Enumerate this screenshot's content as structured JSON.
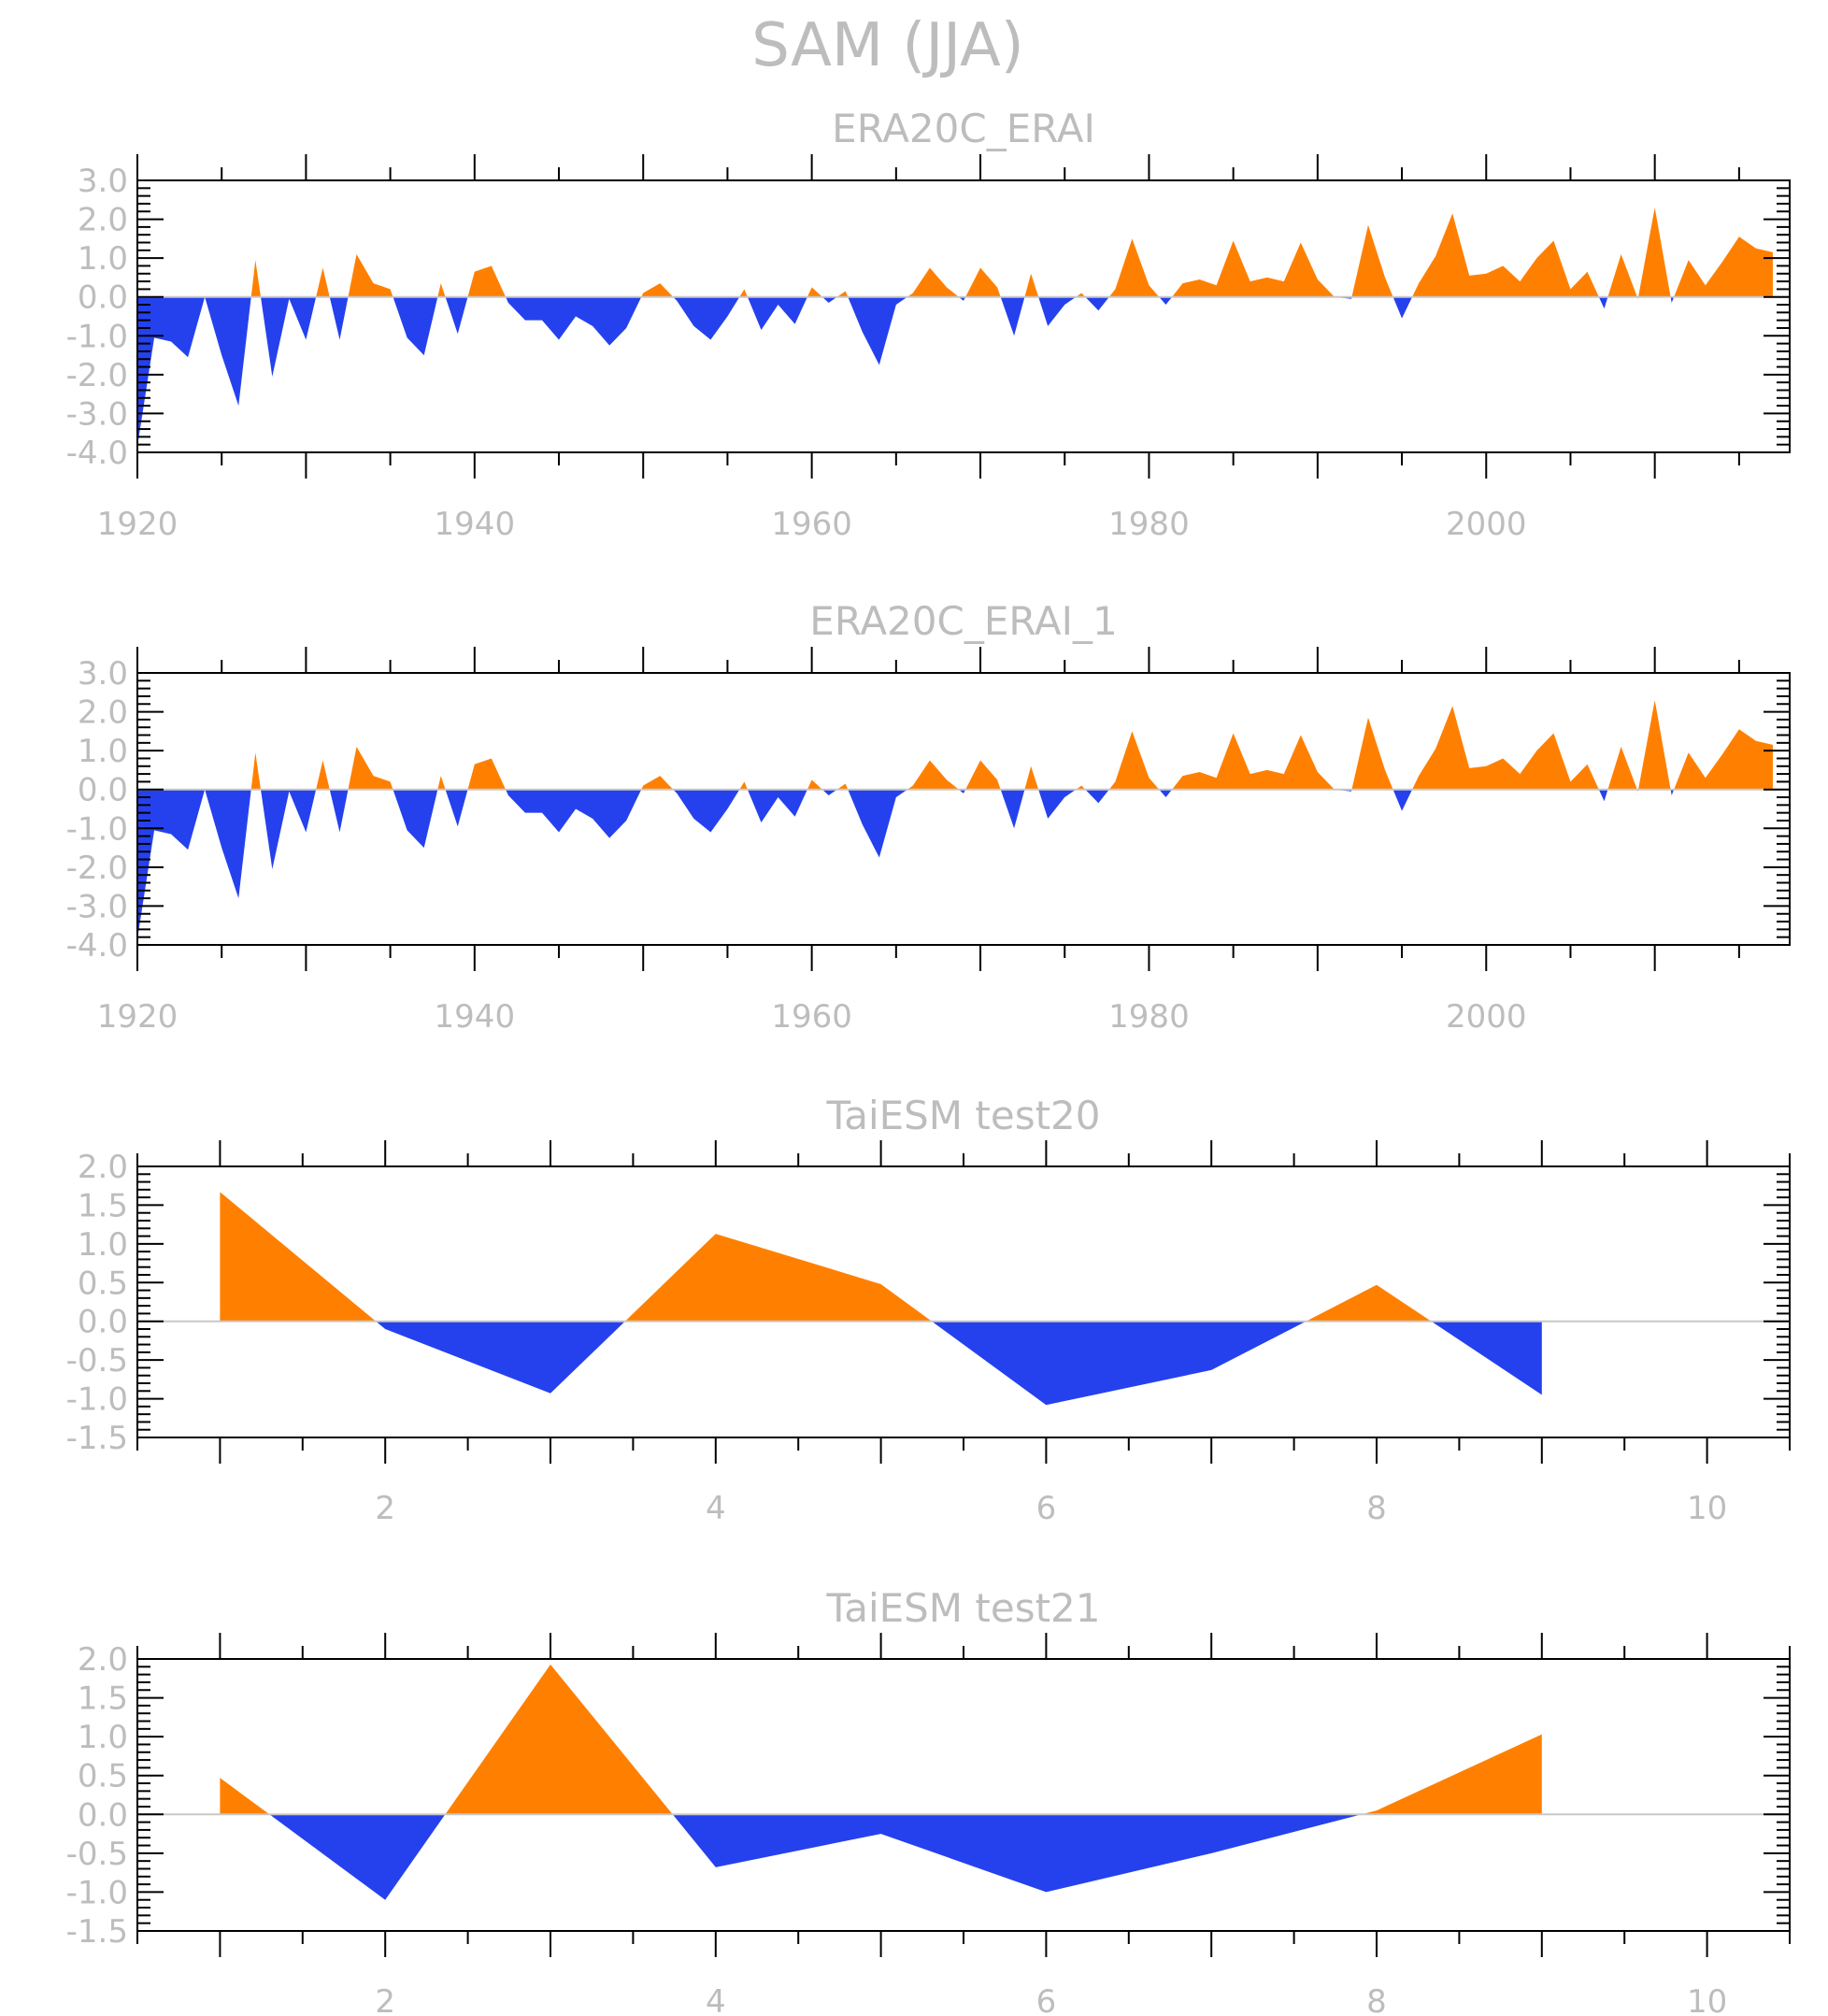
{
  "title": "SAM (JJA)",
  "colors": {
    "positive": "#ff8000",
    "negative": "#2541ee",
    "text": "#bdbdbd",
    "zero_line": "#c8c8c8"
  },
  "chart_data": [
    {
      "type": "area",
      "title": "ERA20C_ERAI",
      "x_start": 1920,
      "xlim": [
        1920,
        2018
      ],
      "ylim": [
        -4.0,
        3.0
      ],
      "yticks": [
        "3.0",
        "2.0",
        "1.0",
        "0.0",
        "-1.0",
        "-2.0",
        "-3.0",
        "-4.0"
      ],
      "xticks": [
        "1920",
        "1940",
        "1960",
        "1980",
        "2000"
      ],
      "fill_positive_color": "#ff8000",
      "fill_negative_color": "#2541ee",
      "values": [
        -3.85,
        -1.05,
        -1.15,
        -1.55,
        0.0,
        -1.5,
        -2.8,
        0.95,
        -2.05,
        -0.05,
        -1.1,
        0.75,
        -1.1,
        1.1,
        0.35,
        0.2,
        -1.05,
        -1.5,
        0.35,
        -0.95,
        0.65,
        0.8,
        -0.15,
        -0.6,
        -0.6,
        -1.1,
        -0.5,
        -0.75,
        -1.25,
        -0.8,
        0.1,
        0.35,
        -0.1,
        -0.75,
        -1.1,
        -0.5,
        0.2,
        -0.85,
        -0.2,
        -0.7,
        0.25,
        -0.15,
        0.15,
        -0.9,
        -1.75,
        -0.2,
        0.1,
        0.75,
        0.25,
        -0.1,
        0.75,
        0.25,
        -1.0,
        0.6,
        -0.75,
        -0.2,
        0.1,
        -0.35,
        0.2,
        1.5,
        0.3,
        -0.2,
        0.35,
        0.45,
        0.3,
        1.45,
        0.4,
        0.5,
        0.4,
        1.4,
        0.45,
        0.0,
        -0.05,
        1.85,
        0.5,
        -0.55,
        0.35,
        1.05,
        2.15,
        0.55,
        0.6,
        0.8,
        0.4,
        1.0,
        1.45,
        0.2,
        0.65,
        -0.3,
        1.1,
        -0.05,
        2.3,
        -0.15,
        0.95,
        0.3,
        0.9,
        1.55,
        1.25,
        1.15
      ]
    },
    {
      "type": "area",
      "title": "ERA20C_ERAI_1",
      "x_start": 1920,
      "xlim": [
        1920,
        2018
      ],
      "ylim": [
        -4.0,
        3.0
      ],
      "yticks": [
        "3.0",
        "2.0",
        "1.0",
        "0.0",
        "-1.0",
        "-2.0",
        "-3.0",
        "-4.0"
      ],
      "xticks": [
        "1920",
        "1940",
        "1960",
        "1980",
        "2000"
      ],
      "fill_positive_color": "#ff8000",
      "fill_negative_color": "#2541ee",
      "values": [
        -3.85,
        -1.05,
        -1.15,
        -1.55,
        0.0,
        -1.5,
        -2.8,
        0.95,
        -2.05,
        -0.05,
        -1.1,
        0.75,
        -1.1,
        1.1,
        0.35,
        0.2,
        -1.05,
        -1.5,
        0.35,
        -0.95,
        0.65,
        0.8,
        -0.15,
        -0.6,
        -0.6,
        -1.1,
        -0.5,
        -0.75,
        -1.25,
        -0.8,
        0.1,
        0.35,
        -0.1,
        -0.75,
        -1.1,
        -0.5,
        0.2,
        -0.85,
        -0.2,
        -0.7,
        0.25,
        -0.15,
        0.15,
        -0.9,
        -1.75,
        -0.2,
        0.1,
        0.75,
        0.25,
        -0.1,
        0.75,
        0.25,
        -1.0,
        0.6,
        -0.75,
        -0.2,
        0.1,
        -0.35,
        0.2,
        1.5,
        0.3,
        -0.2,
        0.35,
        0.45,
        0.3,
        1.45,
        0.4,
        0.5,
        0.4,
        1.4,
        0.45,
        0.0,
        -0.05,
        1.85,
        0.5,
        -0.55,
        0.35,
        1.05,
        2.15,
        0.55,
        0.6,
        0.8,
        0.4,
        1.0,
        1.45,
        0.2,
        0.65,
        -0.3,
        1.1,
        -0.05,
        2.3,
        -0.15,
        0.95,
        0.3,
        0.9,
        1.55,
        1.25,
        1.15
      ]
    },
    {
      "type": "area",
      "title": "TaiESM test20",
      "x_start": 1,
      "xlim": [
        0.5,
        10.5
      ],
      "ylim": [
        -1.5,
        2.0
      ],
      "yticks": [
        "2.0",
        "1.5",
        "1.0",
        "0.5",
        "0.0",
        "-0.5",
        "-1.0",
        "-1.5"
      ],
      "xticks": [
        "2",
        "4",
        "6",
        "8",
        "10"
      ],
      "fill_positive_color": "#ff8000",
      "fill_negative_color": "#2541ee",
      "values": [
        1.67,
        -0.1,
        -0.93,
        1.13,
        0.48,
        -1.08,
        -0.63,
        0.47,
        -0.95
      ]
    },
    {
      "type": "area",
      "title": "TaiESM test21",
      "x_start": 1,
      "xlim": [
        0.5,
        10.5
      ],
      "ylim": [
        -1.5,
        2.0
      ],
      "yticks": [
        "2.0",
        "1.5",
        "1.0",
        "0.5",
        "0.0",
        "-0.5",
        "-1.0",
        "-1.5"
      ],
      "xticks": [
        "2",
        "4",
        "6",
        "8",
        "10"
      ],
      "fill_positive_color": "#ff8000",
      "fill_negative_color": "#2541ee",
      "values": [
        0.47,
        -1.1,
        1.93,
        -0.68,
        -0.25,
        -1.0,
        -0.5,
        0.05,
        1.03
      ]
    }
  ]
}
